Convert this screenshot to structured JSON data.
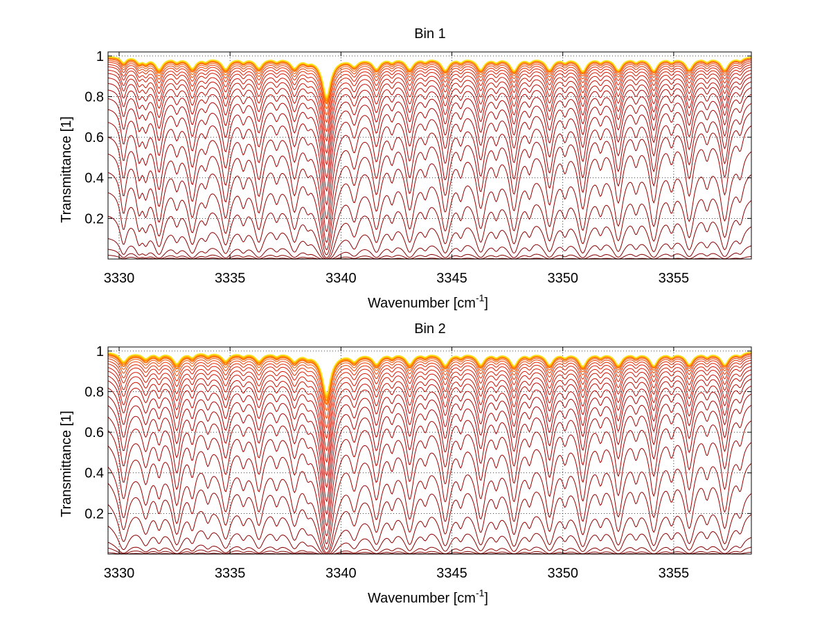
{
  "figure": {
    "background": "#ffffff"
  },
  "chart_data": [
    {
      "type": "line",
      "title": "Bin 1",
      "xlabel": "Wavenumber [cm",
      "xlabel_sup": "-1",
      "xlabel_end": "]",
      "ylabel": "Transmittance [1]",
      "xlim": [
        3329.5,
        3358.5
      ],
      "ylim": [
        0.0,
        1.02
      ],
      "xticks": [
        3330,
        3335,
        3340,
        3345,
        3350,
        3355
      ],
      "xtick_labels": [
        "3330",
        "3335",
        "3340",
        "3345",
        "3350",
        "3355"
      ],
      "yticks": [
        0.2,
        0.4,
        0.6,
        0.8,
        1.0
      ],
      "ytick_labels": [
        "0.2",
        "0.4",
        "0.6",
        "0.8",
        "1"
      ],
      "grid": true,
      "grid_style": "dotted",
      "strong_lines": [
        {
          "center": 3331.8,
          "strength": 1.0
        },
        {
          "center": 3333.3,
          "strength": 0.9
        },
        {
          "center": 3334.8,
          "strength": 0.95
        },
        {
          "center": 3336.3,
          "strength": 0.85
        },
        {
          "center": 3337.9,
          "strength": 0.8
        },
        {
          "center": 3339.35,
          "strength": 3.5
        },
        {
          "center": 3340.6,
          "strength": 0.6
        },
        {
          "center": 3341.6,
          "strength": 0.9
        },
        {
          "center": 3343.1,
          "strength": 0.95
        },
        {
          "center": 3344.7,
          "strength": 1.05
        },
        {
          "center": 3346.3,
          "strength": 1.0
        },
        {
          "center": 3347.8,
          "strength": 1.1
        },
        {
          "center": 3349.4,
          "strength": 1.0
        },
        {
          "center": 3350.9,
          "strength": 1.15
        },
        {
          "center": 3352.5,
          "strength": 1.05
        },
        {
          "center": 3354.1,
          "strength": 1.1
        },
        {
          "center": 3355.7,
          "strength": 1.0
        },
        {
          "center": 3357.3,
          "strength": 1.05
        }
      ],
      "weak_lines": [
        {
          "center": 3330.2,
          "strength": 0.6
        },
        {
          "center": 3330.9,
          "strength": 0.5
        },
        {
          "center": 3331.2,
          "strength": 0.45
        },
        {
          "center": 3332.6,
          "strength": 0.35
        },
        {
          "center": 3333.9,
          "strength": 0.3
        },
        {
          "center": 3335.6,
          "strength": 0.35
        },
        {
          "center": 3337.1,
          "strength": 0.3
        },
        {
          "center": 3338.5,
          "strength": 0.25
        },
        {
          "center": 3342.3,
          "strength": 0.35
        },
        {
          "center": 3343.8,
          "strength": 0.3
        },
        {
          "center": 3345.4,
          "strength": 0.35
        },
        {
          "center": 3347.0,
          "strength": 0.35
        },
        {
          "center": 3348.5,
          "strength": 0.35
        },
        {
          "center": 3350.1,
          "strength": 0.35
        },
        {
          "center": 3351.7,
          "strength": 0.35
        },
        {
          "center": 3353.3,
          "strength": 0.35
        },
        {
          "center": 3354.9,
          "strength": 0.35
        },
        {
          "center": 3356.5,
          "strength": 0.35
        },
        {
          "center": 3358.0,
          "strength": 0.3
        }
      ],
      "continuum_levels_at_left": [
        0.025,
        0.06,
        0.12,
        0.24,
        0.36,
        0.46,
        0.55,
        0.63,
        0.7,
        0.76,
        0.81,
        0.85,
        0.88,
        0.905,
        0.925,
        0.94,
        0.955,
        0.965,
        0.975,
        0.982,
        0.988,
        0.993,
        0.996,
        0.998,
        0.999,
        1.0
      ],
      "continuum_levels_at_right": [
        0.02,
        0.09,
        0.2,
        0.34,
        0.47,
        0.58,
        0.7,
        0.76,
        0.8,
        0.84,
        0.87,
        0.895,
        0.915,
        0.93,
        0.945,
        0.958,
        0.968,
        0.977,
        0.984,
        0.99,
        0.994,
        0.997,
        0.998,
        0.999,
        1.0,
        1.0
      ]
    },
    {
      "type": "line",
      "title": "Bin 2",
      "xlabel": "Wavenumber [cm",
      "xlabel_sup": "-1",
      "xlabel_end": "]",
      "ylabel": "Transmittance [1]",
      "xlim": [
        3329.5,
        3358.5
      ],
      "ylim": [
        0.0,
        1.02
      ],
      "xticks": [
        3330,
        3335,
        3340,
        3345,
        3350,
        3355
      ],
      "xtick_labels": [
        "3330",
        "3335",
        "3340",
        "3345",
        "3350",
        "3355"
      ],
      "yticks": [
        0.2,
        0.4,
        0.6,
        0.8,
        1.0
      ],
      "ytick_labels": [
        "0.2",
        "0.4",
        "0.6",
        "0.8",
        "1"
      ],
      "grid": true,
      "grid_style": "dotted",
      "strong_lines": [
        {
          "center": 3330.2,
          "strength": 0.8
        },
        {
          "center": 3331.2,
          "strength": 0.5
        },
        {
          "center": 3332.6,
          "strength": 0.95
        },
        {
          "center": 3334.8,
          "strength": 0.7
        },
        {
          "center": 3336.3,
          "strength": 0.7
        },
        {
          "center": 3337.9,
          "strength": 0.65
        },
        {
          "center": 3339.35,
          "strength": 3.8
        },
        {
          "center": 3340.6,
          "strength": 0.6
        },
        {
          "center": 3341.6,
          "strength": 0.9
        },
        {
          "center": 3343.1,
          "strength": 0.95
        },
        {
          "center": 3344.7,
          "strength": 1.05
        },
        {
          "center": 3346.3,
          "strength": 1.0
        },
        {
          "center": 3347.8,
          "strength": 1.1
        },
        {
          "center": 3349.4,
          "strength": 1.0
        },
        {
          "center": 3350.9,
          "strength": 1.15
        },
        {
          "center": 3352.5,
          "strength": 1.05
        },
        {
          "center": 3354.1,
          "strength": 1.1
        },
        {
          "center": 3355.7,
          "strength": 1.0
        },
        {
          "center": 3357.3,
          "strength": 1.05
        }
      ],
      "weak_lines": [
        {
          "center": 3331.8,
          "strength": 0.4
        },
        {
          "center": 3333.3,
          "strength": 0.45
        },
        {
          "center": 3334.0,
          "strength": 0.3
        },
        {
          "center": 3335.6,
          "strength": 0.3
        },
        {
          "center": 3337.1,
          "strength": 0.3
        },
        {
          "center": 3338.5,
          "strength": 0.25
        },
        {
          "center": 3342.3,
          "strength": 0.35
        },
        {
          "center": 3343.8,
          "strength": 0.3
        },
        {
          "center": 3345.4,
          "strength": 0.35
        },
        {
          "center": 3347.0,
          "strength": 0.35
        },
        {
          "center": 3348.5,
          "strength": 0.35
        },
        {
          "center": 3350.1,
          "strength": 0.35
        },
        {
          "center": 3351.7,
          "strength": 0.35
        },
        {
          "center": 3353.3,
          "strength": 0.35
        },
        {
          "center": 3354.9,
          "strength": 0.35
        },
        {
          "center": 3356.5,
          "strength": 0.35
        },
        {
          "center": 3358.0,
          "strength": 0.3
        }
      ],
      "continuum_levels_at_left": [
        0.015,
        0.05,
        0.09,
        0.19,
        0.31,
        0.42,
        0.5,
        0.6,
        0.67,
        0.73,
        0.78,
        0.82,
        0.855,
        0.885,
        0.905,
        0.925,
        0.94,
        0.955,
        0.966,
        0.976,
        0.984,
        0.99,
        0.994,
        0.997,
        0.999,
        1.0
      ],
      "continuum_levels_at_right": [
        0.015,
        0.05,
        0.11,
        0.24,
        0.35,
        0.5,
        0.6,
        0.7,
        0.77,
        0.82,
        0.855,
        0.885,
        0.905,
        0.925,
        0.94,
        0.955,
        0.966,
        0.976,
        0.984,
        0.99,
        0.994,
        0.997,
        0.998,
        0.999,
        1.0,
        1.0
      ]
    }
  ]
}
